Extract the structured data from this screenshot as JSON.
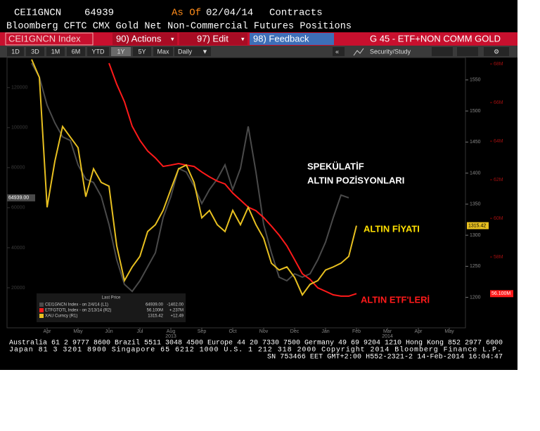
{
  "header": {
    "ticker": "CEI1GNCN",
    "value": "64939",
    "as_of_label": "As Of",
    "date": "02/04/14",
    "unit": "Contracts",
    "title": "Bloomberg CFTC CMX Gold Net Non-Commercial Futures Positions"
  },
  "menu": {
    "security": "CEI1GNCN Index",
    "actions": "90) Actions",
    "edit": "97) Edit",
    "feedback": "98) Feedback",
    "function": "G 45 - ETF+NON COMM GOLD"
  },
  "toolbar": {
    "periods": [
      "1D",
      "3D",
      "1M",
      "6M",
      "YTD",
      "1Y",
      "5Y",
      "Max"
    ],
    "selected_period_index": 5,
    "frequency": "Daily",
    "collapse": "«",
    "security_study": "Security/Study"
  },
  "chart_data": {
    "type": "line",
    "categories": [
      null,
      null,
      "Apr",
      null,
      null,
      null,
      "May",
      null,
      null,
      null,
      "Jun",
      null,
      null,
      null,
      "Jul",
      null,
      null,
      null,
      "Aug",
      null,
      null,
      null,
      "Sep",
      null,
      null,
      null,
      "Oct",
      null,
      null,
      null,
      "Nov",
      null,
      null,
      null,
      "Dec",
      null,
      null,
      null,
      "Jan",
      null,
      null,
      null,
      "Feb",
      null,
      null,
      null,
      "Mar",
      null,
      null,
      null,
      "Apr",
      null,
      null,
      null,
      "May",
      null
    ],
    "x_year_labels": [
      {
        "value": 18,
        "label": "2013"
      },
      {
        "value": 46,
        "label": "2014"
      }
    ],
    "ylim": [
      0,
      135000
    ],
    "yticks": [
      20000,
      40000,
      60000,
      80000,
      100000,
      120000
    ],
    "y2lim": [
      1151,
      1586
    ],
    "y2ticks": [
      1200,
      1250,
      1300,
      1350,
      1400,
      1450,
      1500,
      1550
    ],
    "y3lim": [
      54.33,
      68.33
    ],
    "y3ticks": [
      {
        "value": 58,
        "label": "58M"
      },
      {
        "value": 60,
        "label": "60M"
      },
      {
        "value": 62,
        "label": "62M"
      },
      {
        "value": 64,
        "label": "64M"
      },
      {
        "value": 66,
        "label": "66M"
      },
      {
        "value": 68,
        "label": "68M"
      }
    ],
    "legend_title": "Last Price",
    "annotations": [
      "SPEKÜLATİF",
      "ALTIN POZİSYONLARI",
      "ALTIN FİYATI",
      "ALTIN ETF'LERİ"
    ],
    "series": [
      {
        "name": "CEI1GNCN Index - on 2/4/14 (L1)",
        "color": "#4a4a4a",
        "axis": "y",
        "last_label": "64939.00",
        "change": "-1402.00",
        "values": [
          132200,
          125200,
          111200,
          102400,
          95400,
          93600,
          81400,
          74300,
          72600,
          65600,
          51600,
          34000,
          21700,
          18200,
          23500,
          30500,
          37500,
          55100,
          65600,
          79600,
          77800,
          70800,
          62100,
          69100,
          74300,
          81400,
          69100,
          79600,
          100600,
          77800,
          51600,
          37500,
          25300,
          23500,
          27000,
          25300,
          27000,
          34000,
          42800,
          55100,
          66300,
          64939,
          null,
          null,
          null,
          null,
          null,
          null,
          null,
          null,
          null,
          null,
          null,
          null,
          null,
          null
        ]
      },
      {
        "name": "ETFGTOTL Index - on 2/13/14 (R2)",
        "color": "#ff1a1a",
        "axis": "y3",
        "last_label": "56.100M",
        "change": "+.237M",
        "values": [
          null,
          null,
          null,
          null,
          null,
          null,
          null,
          null,
          null,
          null,
          68.04,
          66.95,
          66.04,
          64.77,
          64.04,
          63.49,
          63.13,
          62.69,
          62.76,
          62.84,
          62.76,
          62.69,
          62.4,
          62.15,
          61.93,
          61.78,
          61.31,
          60.95,
          60.58,
          60.4,
          60.04,
          59.6,
          59.13,
          58.58,
          57.86,
          57.13,
          56.84,
          56.4,
          56.22,
          56.04,
          55.97,
          55.97,
          56.1,
          null,
          null,
          null,
          null,
          null,
          null,
          null,
          null,
          null,
          null,
          null,
          null,
          null
        ]
      },
      {
        "name": "XAU Curncy (R1)",
        "color": "#e8c020",
        "axis": "y2",
        "last_label": "1315.42",
        "change": "+12.49",
        "values": [
          1583,
          1554,
          1345,
          1419,
          1475,
          1458,
          1441,
          1362,
          1407,
          1385,
          1379,
          1283,
          1227,
          1249,
          1266,
          1306,
          1317,
          1340,
          1374,
          1407,
          1413,
          1385,
          1328,
          1340,
          1317,
          1306,
          1340,
          1317,
          1345,
          1317,
          1295,
          1255,
          1244,
          1249,
          1232,
          1204,
          1221,
          1227,
          1244,
          1249,
          1255,
          1266,
          1315.42,
          null,
          null,
          null,
          null,
          null,
          null,
          null,
          null,
          null,
          null,
          null,
          null,
          null
        ]
      }
    ]
  },
  "footer": [
    "Australia 61 2 9777 8600 Brazil 5511 3048 4500 Europe 44 20 7330 7500 Germany 49 69 9204 1210 Hong Kong 852 2977 6000",
    "Japan 81 3 3201 8900        Singapore 65 6212 1000        U.S. 1 212 318 2000        Copyright 2014 Bloomberg Finance L.P.",
    "SN 753466 EET  GMT+2:00 H552-2321-2 14-Feb-2014 16:04:47"
  ]
}
